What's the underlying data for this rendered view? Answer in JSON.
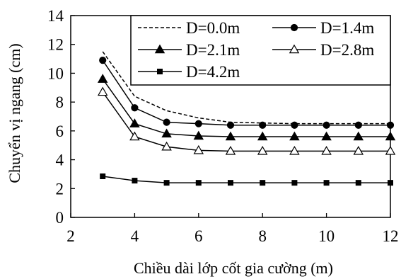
{
  "chart_data": {
    "type": "line",
    "title": "",
    "xlabel": "Chiều dài lớp cốt gia cường (m)",
    "ylabel": "Chuyển vị ngang (cm)",
    "xlim": [
      2,
      12
    ],
    "ylim": [
      0,
      14
    ],
    "xticks": [
      2,
      4,
      6,
      8,
      10,
      12
    ],
    "yticks": [
      0,
      2,
      4,
      6,
      8,
      10,
      12,
      14
    ],
    "grid": false,
    "legend_position": "top-right",
    "x": [
      3,
      4,
      5,
      6,
      7,
      8,
      9,
      10,
      11,
      12
    ],
    "series": [
      {
        "name": "D=0.0m",
        "style": "dashed",
        "marker": "none",
        "values": [
          11.5,
          8.4,
          7.4,
          6.9,
          6.6,
          6.55,
          6.5,
          6.5,
          6.5,
          6.5
        ]
      },
      {
        "name": "D=1.4m",
        "style": "solid",
        "marker": "filled-circle",
        "values": [
          10.9,
          7.6,
          6.6,
          6.5,
          6.4,
          6.4,
          6.4,
          6.4,
          6.4,
          6.4
        ]
      },
      {
        "name": "D=2.1m",
        "style": "solid",
        "marker": "filled-triangle",
        "values": [
          9.6,
          6.5,
          5.8,
          5.65,
          5.6,
          5.6,
          5.6,
          5.6,
          5.6,
          5.6
        ]
      },
      {
        "name": "D=2.8m",
        "style": "solid",
        "marker": "open-triangle",
        "values": [
          8.7,
          5.6,
          4.9,
          4.65,
          4.6,
          4.6,
          4.6,
          4.6,
          4.6,
          4.6
        ]
      },
      {
        "name": "D=4.2m",
        "style": "solid",
        "marker": "filled-square",
        "values": [
          2.85,
          2.55,
          2.4,
          2.4,
          2.4,
          2.4,
          2.4,
          2.4,
          2.4,
          2.4
        ]
      }
    ]
  }
}
